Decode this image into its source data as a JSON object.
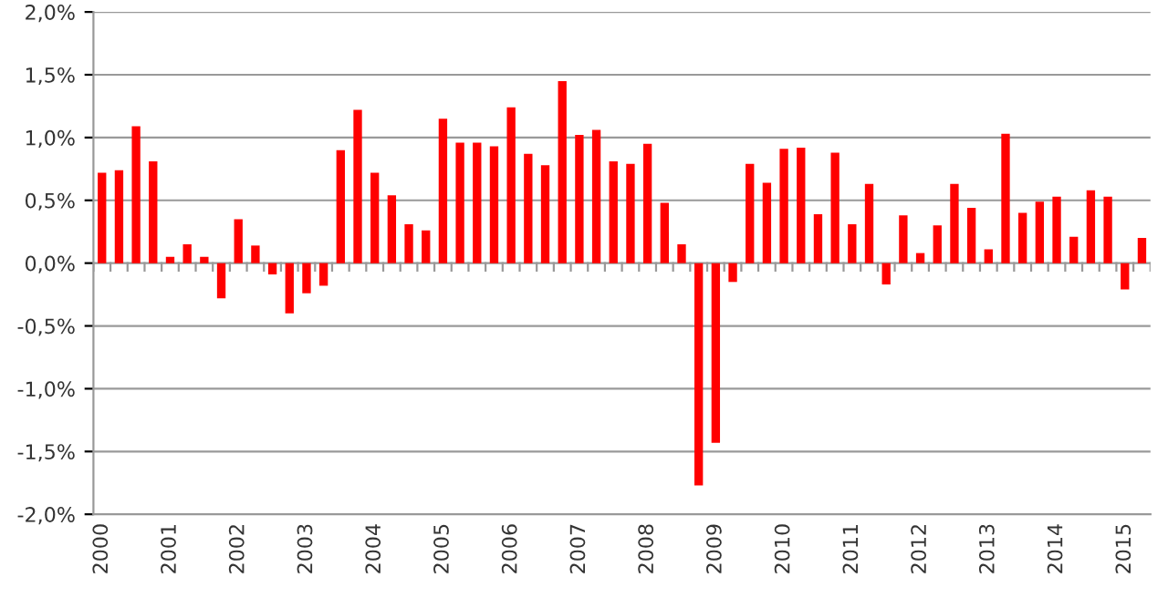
{
  "chart_data": {
    "type": "bar",
    "categories": [
      "2000",
      null,
      null,
      null,
      "2001",
      null,
      null,
      null,
      "2002",
      null,
      null,
      null,
      "2003",
      null,
      null,
      null,
      "2004",
      null,
      null,
      null,
      "2005",
      null,
      null,
      null,
      "2006",
      null,
      null,
      null,
      "2007",
      null,
      null,
      null,
      "2008",
      null,
      null,
      null,
      "2009",
      null,
      null,
      null,
      "2010",
      null,
      null,
      null,
      "2011",
      null,
      null,
      null,
      "2012",
      null,
      null,
      null,
      "2013",
      null,
      null,
      null,
      "2014",
      null,
      null,
      null,
      "2015",
      null
    ],
    "values": [
      0.72,
      0.74,
      1.09,
      0.81,
      0.05,
      0.15,
      0.05,
      -0.28,
      0.35,
      0.14,
      -0.09,
      -0.4,
      -0.24,
      -0.18,
      0.9,
      1.22,
      0.72,
      0.54,
      0.31,
      0.26,
      1.15,
      0.96,
      0.96,
      0.93,
      1.24,
      0.87,
      0.78,
      1.45,
      1.02,
      1.06,
      0.81,
      0.79,
      0.95,
      0.48,
      0.15,
      -1.77,
      -1.43,
      -0.15,
      0.79,
      0.64,
      0.91,
      0.92,
      0.39,
      0.88,
      0.31,
      0.63,
      -0.17,
      0.38,
      0.08,
      0.3,
      0.63,
      0.44,
      0.11,
      1.03,
      0.4,
      0.49,
      0.53,
      0.21,
      0.58,
      0.53,
      -0.21,
      0.2
    ],
    "color": "#ff0000",
    "ylim": [
      -2.0,
      2.0
    ],
    "yticks": [
      {
        "value": -2.0,
        "label": "-2,0%"
      },
      {
        "value": -1.5,
        "label": "-1,5%"
      },
      {
        "value": -1.0,
        "label": "-1,0%"
      },
      {
        "value": -0.5,
        "label": "-0,5%"
      },
      {
        "value": 0.0,
        "label": "0,0%"
      },
      {
        "value": 0.5,
        "label": "0,5%"
      },
      {
        "value": 1.0,
        "label": "1,0%"
      },
      {
        "value": 1.5,
        "label": "1,5%"
      },
      {
        "value": 2.0,
        "label": "2,0%"
      }
    ],
    "grid": "y",
    "legend": false
  }
}
